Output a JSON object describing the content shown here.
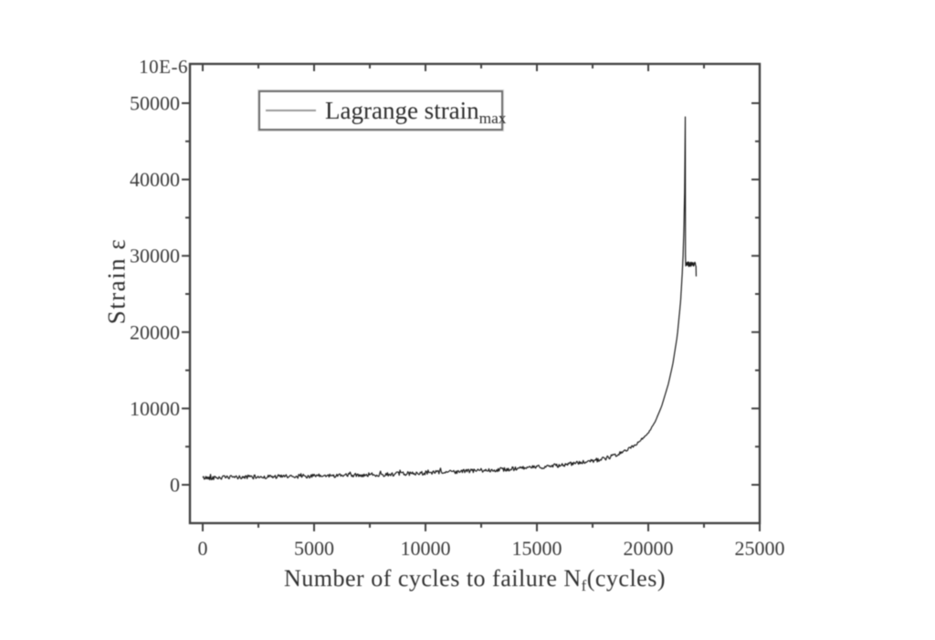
{
  "figure": {
    "unit_label": "10E-6",
    "y_axis_title": "Strain ε",
    "x_axis_title": {
      "main": "Number of cycles to failure N",
      "sub": "f",
      "tail": "(cycles)"
    },
    "legend": {
      "label_main": "Lagrange strain",
      "label_sub": "max"
    }
  },
  "colors": {
    "axis": "#424242",
    "tick_text": "#3a3a3a",
    "curve": "#1c1c1c",
    "legend_line": "#9a9a9a",
    "background": "#ffffff"
  },
  "chart_data": {
    "type": "line",
    "title": "",
    "xlabel": "Number of cycles to failure Nf(cycles)",
    "ylabel": "Strain ε",
    "y_unit_multiplier": "10E-6",
    "xlim": [
      -600,
      25000
    ],
    "ylim": [
      -5000,
      55100
    ],
    "grid": false,
    "legend_position": "upper-left-inside",
    "x_major_ticks": [
      0,
      5000,
      10000,
      15000,
      20000,
      25000
    ],
    "x_minor_ticks": [
      2500,
      7500,
      12500,
      17500,
      22500
    ],
    "y_major_ticks": [
      0,
      10000,
      20000,
      30000,
      40000,
      50000
    ],
    "y_minor_ticks": [
      5000,
      15000,
      25000,
      35000,
      45000
    ],
    "series": [
      {
        "name": "Lagrange strain max",
        "anchors": [
          [
            0,
            900
          ],
          [
            2000,
            1000
          ],
          [
            4000,
            1100
          ],
          [
            6000,
            1200
          ],
          [
            8000,
            1350
          ],
          [
            10000,
            1550
          ],
          [
            12000,
            1800
          ],
          [
            14000,
            2100
          ],
          [
            15000,
            2300
          ],
          [
            16000,
            2550
          ],
          [
            17000,
            2900
          ],
          [
            18000,
            3400
          ],
          [
            18500,
            3800
          ],
          [
            19000,
            4500
          ],
          [
            19500,
            5400
          ],
          [
            20000,
            6800
          ],
          [
            20300,
            8200
          ],
          [
            20600,
            10300
          ],
          [
            20900,
            13200
          ],
          [
            21100,
            15800
          ],
          [
            21300,
            19500
          ],
          [
            21450,
            24000
          ],
          [
            21550,
            29000
          ],
          [
            21600,
            33500
          ],
          [
            21640,
            40000
          ],
          [
            21660,
            48200
          ]
        ],
        "peak_drop": [
          [
            21668,
            30000
          ]
        ],
        "tail_flat": {
          "from": 21680,
          "to": 22140,
          "step": 10,
          "center": 28900,
          "amplitude": 300
        },
        "tail_end": [
          [
            22150,
            27300
          ]
        ],
        "noise": {
          "amplitude": 260,
          "fade_start": 18500,
          "fade_end": 20600,
          "step": 35,
          "seed": 42,
          "spike_chance": 0.06,
          "spike_scale": 1.8
        }
      }
    ]
  }
}
